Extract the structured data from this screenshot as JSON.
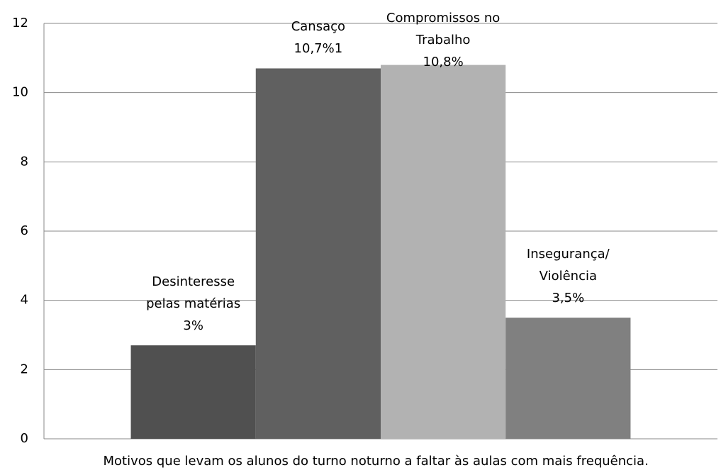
{
  "chart_data": {
    "type": "bar",
    "categories": [
      "Motivos que levam os alunos do turno noturno a faltar às aulas com mais frequência."
    ],
    "series": [
      {
        "name": "Desinteresse pelas matérias",
        "color": "#505050",
        "values": [
          2.7
        ],
        "value_labels": [
          "3%"
        ]
      },
      {
        "name": "Cansaço",
        "color": "#606060",
        "values": [
          10.7
        ],
        "value_labels": [
          "10,7%1"
        ]
      },
      {
        "name": "Compromissos no Trabalho",
        "color": "#b2b2b2",
        "values": [
          10.8
        ],
        "value_labels": [
          "10,8%"
        ]
      },
      {
        "name": "Insegurança/ Violência",
        "color": "#808080",
        "values": [
          3.5
        ],
        "value_labels": [
          "3,5%"
        ]
      }
    ],
    "ylim": [
      0,
      12
    ],
    "yticks": [
      0,
      2,
      4,
      6,
      8,
      10,
      12
    ],
    "grid": true
  }
}
